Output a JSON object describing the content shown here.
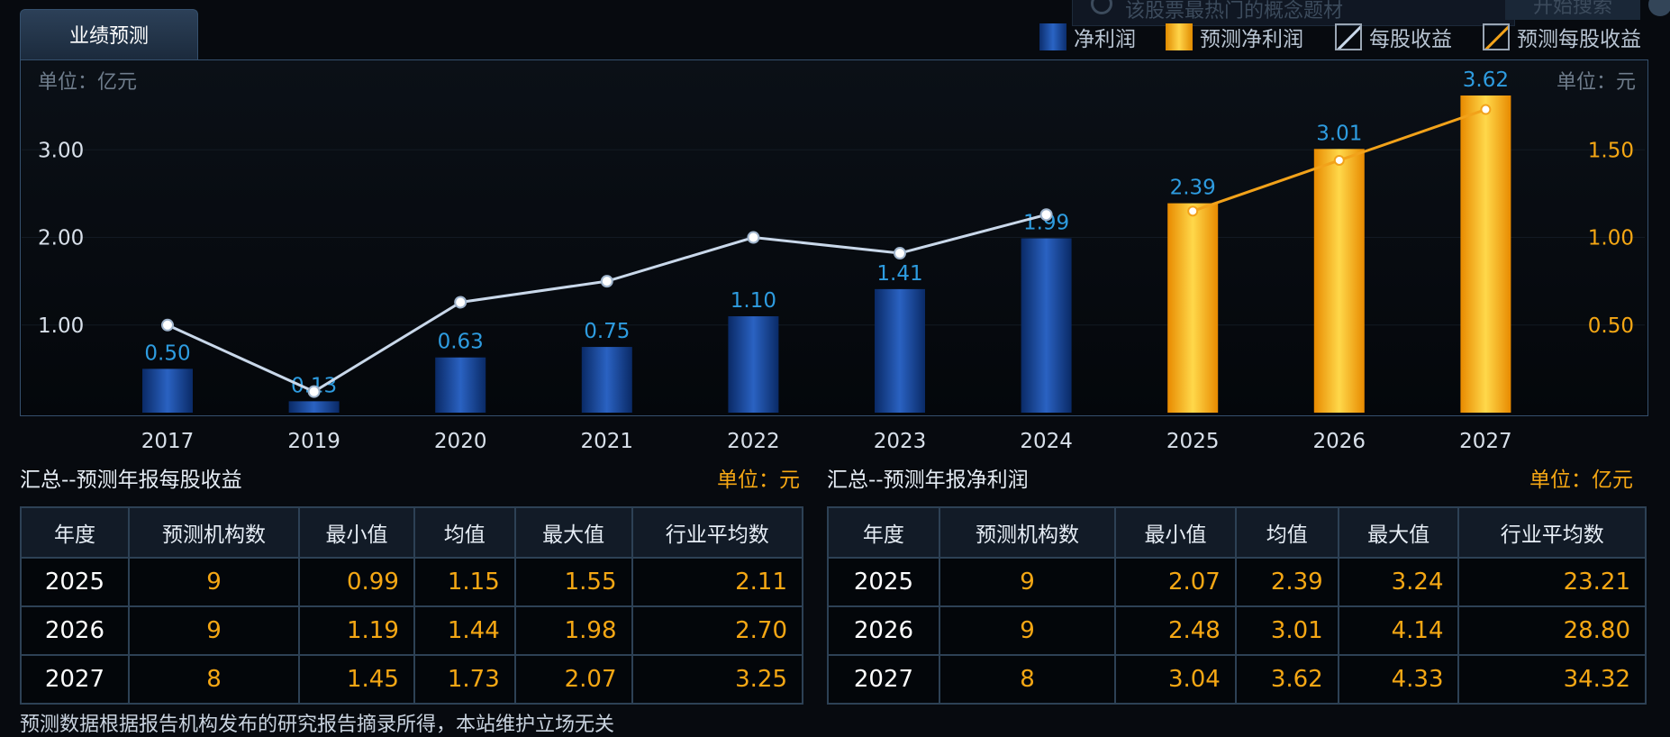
{
  "search": {
    "placeholder": "该股票最热门的概念题材",
    "button": "开始搜索"
  },
  "tab": {
    "label": "业绩预测"
  },
  "legend": [
    {
      "label": "净利润",
      "swatch": "blue"
    },
    {
      "label": "预测净利润",
      "swatch": "gold"
    },
    {
      "label": "每股收益",
      "swatch": "white-line"
    },
    {
      "label": "预测每股收益",
      "swatch": "orange-line"
    }
  ],
  "colors": {
    "actual_bar": "#1d4fa8",
    "forecast_bar": "#f5a714",
    "eps_line": "#c9d8ea",
    "forecast_eps_line": "#f2a21a",
    "bar_label": "#2e9ce0",
    "right_axis": "#f5a714"
  },
  "chart_data": {
    "type": "bar",
    "left_unit": "单位：亿元",
    "right_unit": "单位：元",
    "categories": [
      "2017",
      "2019",
      "2020",
      "2021",
      "2022",
      "2023",
      "2024",
      "2025",
      "2026",
      "2027"
    ],
    "net_profit": [
      0.5,
      0.13,
      0.63,
      0.75,
      1.1,
      1.41,
      1.99,
      2.39,
      3.01,
      3.62
    ],
    "net_profit_labels": [
      "0.50",
      "0.13",
      "0.63",
      "0.75",
      "1.10",
      "1.41",
      "1.99",
      "2.39",
      "3.01",
      "3.62"
    ],
    "forecast_from_index": 7,
    "eps": [
      0.5,
      0.12,
      0.63,
      0.75,
      1.0,
      0.91,
      1.13
    ],
    "forecast_eps": [
      1.15,
      1.44,
      1.73
    ],
    "left_axis": {
      "ticks": [
        "1.00",
        "2.00",
        "3.00"
      ],
      "tick_values": [
        1,
        2,
        3
      ],
      "ylim": [
        0,
        3.62
      ]
    },
    "right_axis": {
      "ticks": [
        "0.50",
        "1.00",
        "1.50"
      ],
      "tick_values": [
        0.5,
        1,
        1.5
      ],
      "ylim": [
        0,
        1.81
      ]
    }
  },
  "eps_summary": {
    "title": "汇总--预测年报每股收益",
    "unit": "单位：元",
    "headers": [
      "年度",
      "预测机构数",
      "最小值",
      "均值",
      "最大值",
      "行业平均数"
    ],
    "rows": [
      [
        "2025",
        "9",
        "0.99",
        "1.15",
        "1.55",
        "2.11"
      ],
      [
        "2026",
        "9",
        "1.19",
        "1.44",
        "1.98",
        "2.70"
      ],
      [
        "2027",
        "8",
        "1.45",
        "1.73",
        "2.07",
        "3.25"
      ]
    ]
  },
  "profit_summary": {
    "title": "汇总--预测年报净利润",
    "unit": "单位：亿元",
    "headers": [
      "年度",
      "预测机构数",
      "最小值",
      "均值",
      "最大值",
      "行业平均数"
    ],
    "rows": [
      [
        "2025",
        "9",
        "2.07",
        "2.39",
        "3.24",
        "23.21"
      ],
      [
        "2026",
        "9",
        "2.48",
        "3.01",
        "4.14",
        "28.80"
      ],
      [
        "2027",
        "8",
        "3.04",
        "3.62",
        "4.33",
        "34.32"
      ]
    ]
  },
  "footnote": "预测数据根据报告机构发布的研究报告摘录所得，本站维护立场无关"
}
